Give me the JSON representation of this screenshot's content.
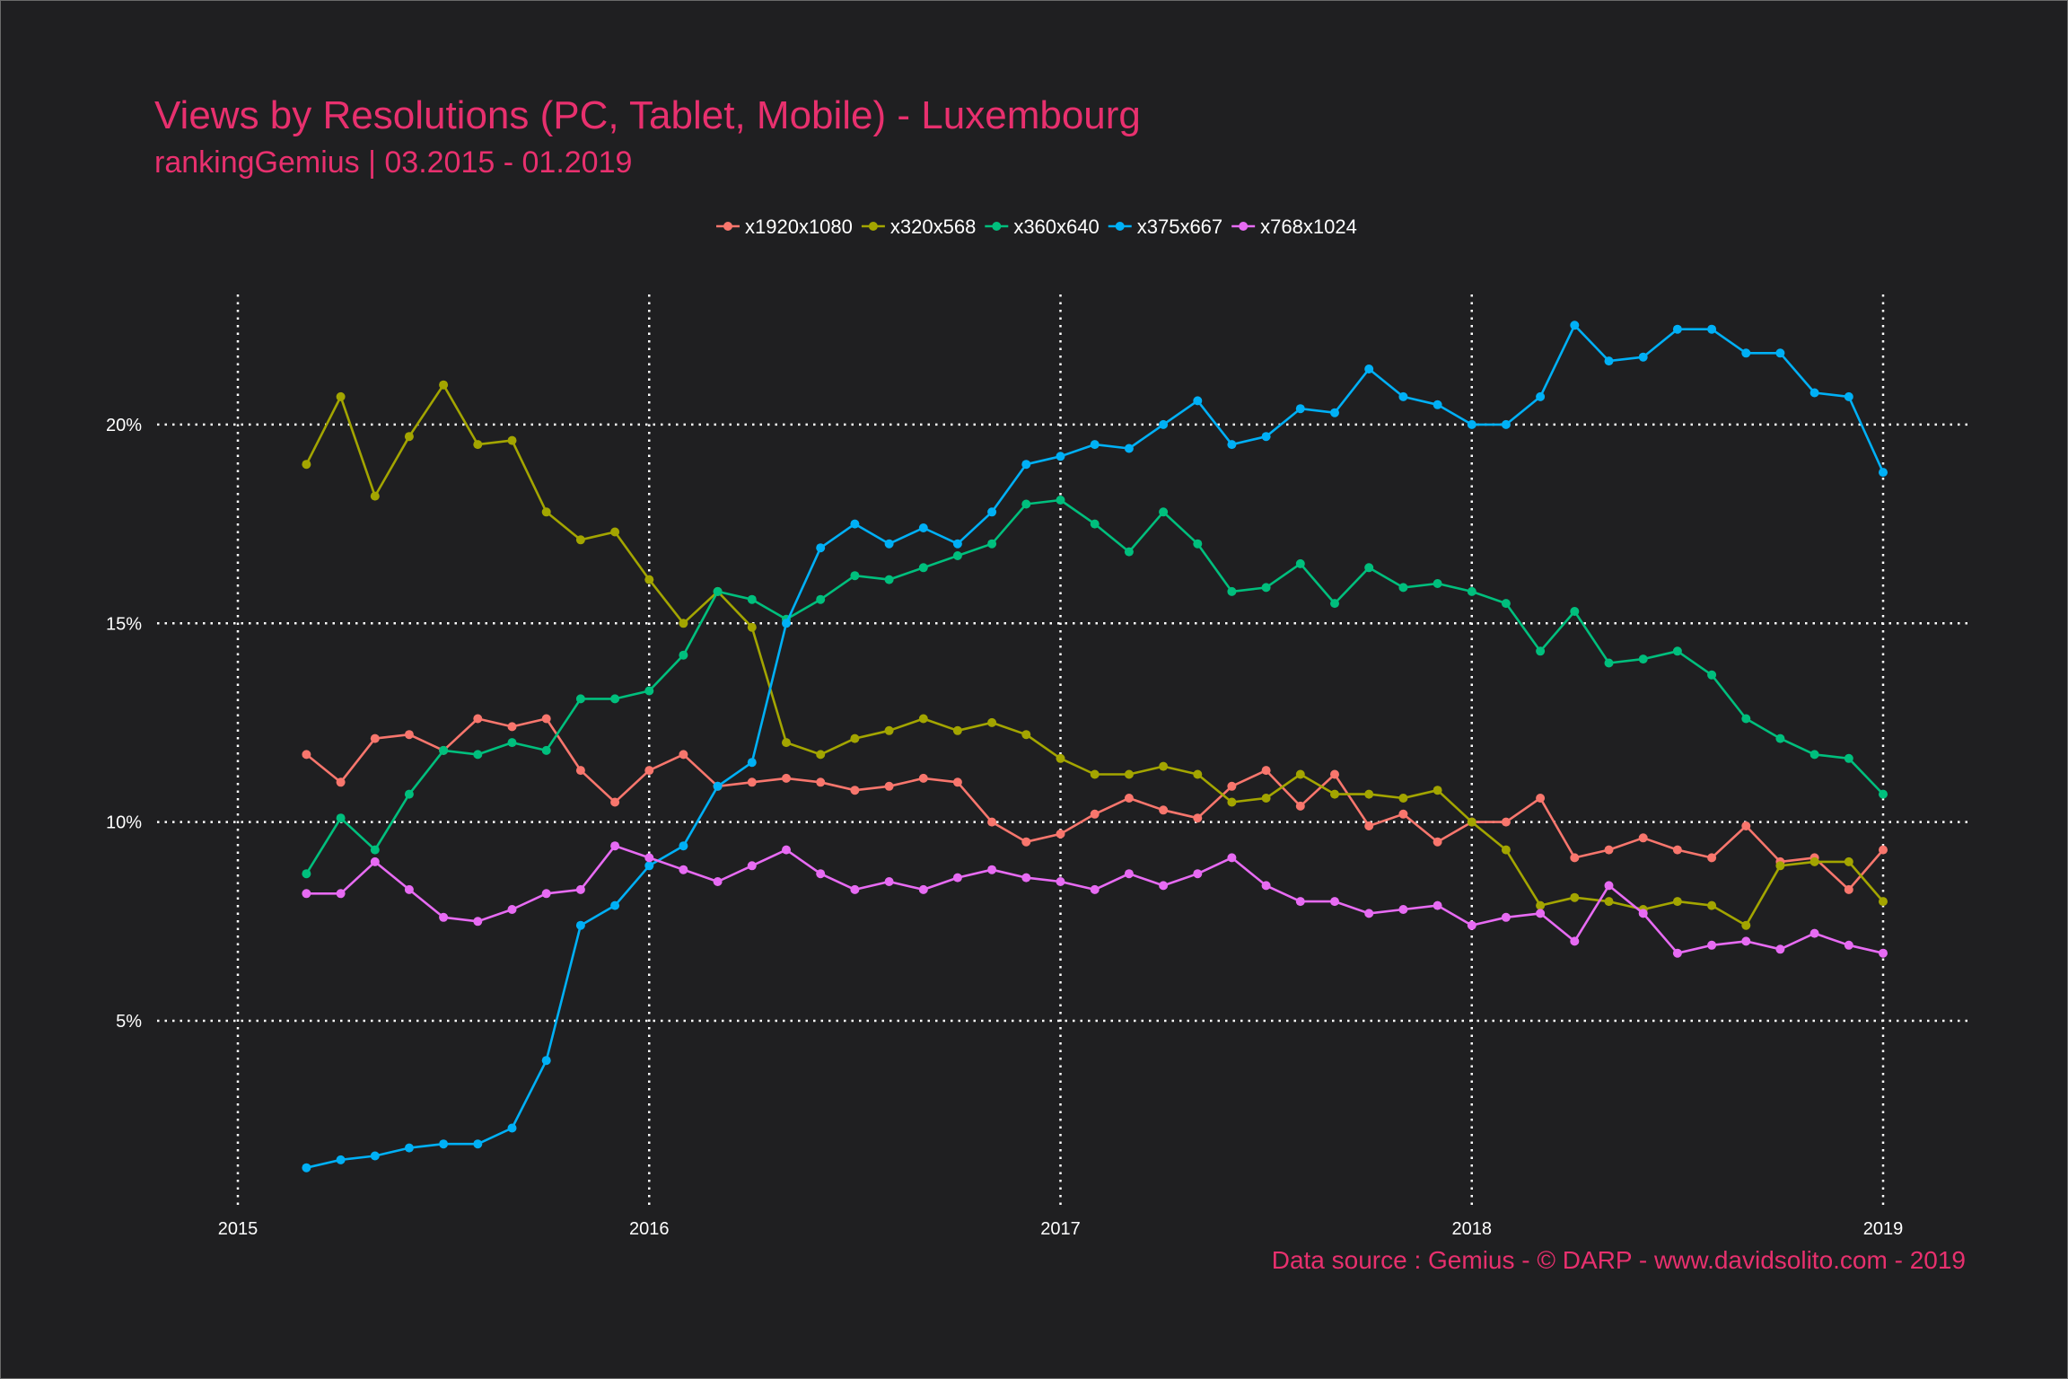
{
  "chart_data": {
    "type": "line",
    "title": "Views by Resolutions (PC, Tablet, Mobile) - Luxembourg",
    "subtitle": "rankingGemius | 03.2015 - 01.2019",
    "caption": "Data source : Gemius - © DARP - www.davidsolito.com - 2019",
    "xlabel": "",
    "ylabel": "",
    "x_start": "2015-03",
    "x_end": "2019-01",
    "x_ticks": [
      "2015",
      "2016",
      "2017",
      "2018",
      "2019"
    ],
    "y_ticks": [
      "5%",
      "10%",
      "15%",
      "20%"
    ],
    "ylim": [
      0.3,
      23.5
    ],
    "grid": "dotted",
    "legend_position": "top",
    "x": [
      "2015-03",
      "2015-04",
      "2015-05",
      "2015-06",
      "2015-07",
      "2015-08",
      "2015-09",
      "2015-10",
      "2015-11",
      "2015-12",
      "2016-01",
      "2016-02",
      "2016-03",
      "2016-04",
      "2016-05",
      "2016-06",
      "2016-07",
      "2016-08",
      "2016-09",
      "2016-10",
      "2016-11",
      "2016-12",
      "2017-01",
      "2017-02",
      "2017-03",
      "2017-04",
      "2017-05",
      "2017-06",
      "2017-07",
      "2017-08",
      "2017-09",
      "2017-10",
      "2017-11",
      "2017-12",
      "2018-01",
      "2018-02",
      "2018-03",
      "2018-04",
      "2018-05",
      "2018-06",
      "2018-07",
      "2018-08",
      "2018-09",
      "2018-10",
      "2018-11",
      "2018-12",
      "2019-01"
    ],
    "series": [
      {
        "name": "x1920x1080",
        "color": "#f8766d",
        "values": [
          11.7,
          11.0,
          12.1,
          12.2,
          11.8,
          12.6,
          12.4,
          12.6,
          11.3,
          10.5,
          11.3,
          11.7,
          10.9,
          11.0,
          11.1,
          11.0,
          10.8,
          10.9,
          11.1,
          11.0,
          10.0,
          9.5,
          9.7,
          10.2,
          10.6,
          10.3,
          10.1,
          10.9,
          11.3,
          10.4,
          11.2,
          9.9,
          10.2,
          9.5,
          10.0,
          10.0,
          10.6,
          9.1,
          9.3,
          9.6,
          9.3,
          9.1,
          9.9,
          9.0,
          9.1,
          8.3,
          9.3
        ]
      },
      {
        "name": "x320x568",
        "color": "#a3a500",
        "values": [
          19.0,
          20.7,
          18.2,
          19.7,
          21.0,
          19.5,
          19.6,
          17.8,
          17.1,
          17.3,
          16.1,
          15.0,
          15.8,
          14.9,
          12.0,
          11.7,
          12.1,
          12.3,
          12.6,
          12.3,
          12.5,
          12.2,
          11.6,
          11.2,
          11.2,
          11.4,
          11.2,
          10.5,
          10.6,
          11.2,
          10.7,
          10.7,
          10.6,
          10.8,
          10.0,
          9.3,
          7.9,
          8.1,
          8.0,
          7.8,
          8.0,
          7.9,
          7.4,
          8.9,
          9.0,
          9.0,
          8.0
        ]
      },
      {
        "name": "x360x640",
        "color": "#00bf7d",
        "values": [
          8.7,
          10.1,
          9.3,
          10.7,
          11.8,
          11.7,
          12.0,
          11.8,
          13.1,
          13.1,
          13.3,
          14.2,
          15.8,
          15.6,
          15.1,
          15.6,
          16.2,
          16.1,
          16.4,
          16.7,
          17.0,
          18.0,
          18.1,
          17.5,
          16.8,
          17.8,
          17.0,
          15.8,
          15.9,
          16.5,
          15.5,
          16.4,
          15.9,
          16.0,
          15.8,
          15.5,
          14.3,
          15.3,
          14.0,
          14.1,
          14.3,
          13.7,
          12.6,
          12.1,
          11.7,
          11.6,
          10.7
        ]
      },
      {
        "name": "x375x667",
        "color": "#00b0f6",
        "values": [
          1.3,
          1.5,
          1.6,
          1.8,
          1.9,
          1.9,
          2.3,
          4.0,
          7.4,
          7.9,
          8.9,
          9.4,
          10.9,
          11.5,
          15.0,
          16.9,
          17.5,
          17.0,
          17.4,
          17.0,
          17.8,
          19.0,
          19.2,
          19.5,
          19.4,
          20.0,
          20.6,
          19.5,
          19.7,
          20.4,
          20.3,
          21.4,
          20.7,
          20.5,
          20.0,
          20.0,
          20.7,
          22.5,
          21.6,
          21.7,
          22.4,
          22.4,
          21.8,
          21.8,
          20.8,
          20.7,
          18.8
        ]
      },
      {
        "name": "x768x1024",
        "color": "#e76bf3",
        "values": [
          8.2,
          8.2,
          9.0,
          8.3,
          7.6,
          7.5,
          7.8,
          8.2,
          8.3,
          9.4,
          9.1,
          8.8,
          8.5,
          8.9,
          9.3,
          8.7,
          8.3,
          8.5,
          8.3,
          8.6,
          8.8,
          8.6,
          8.5,
          8.3,
          8.7,
          8.4,
          8.7,
          9.1,
          8.4,
          8.0,
          8.0,
          7.7,
          7.8,
          7.9,
          7.4,
          7.6,
          7.7,
          7.0,
          8.4,
          7.7,
          6.7,
          6.9,
          7.0,
          6.8,
          7.2,
          6.9,
          6.7
        ]
      }
    ]
  }
}
